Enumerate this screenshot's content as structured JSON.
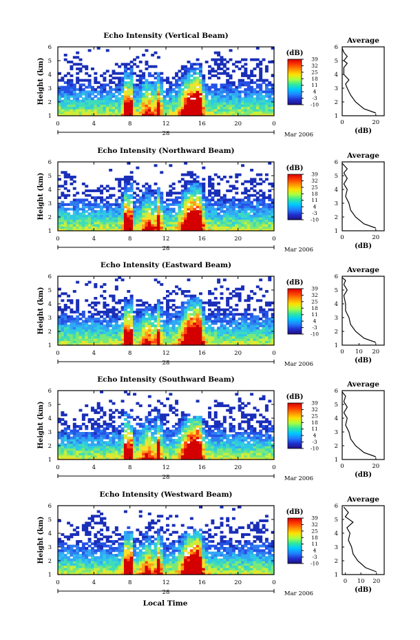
{
  "figure": {
    "x_label": "Local Time",
    "date_label": "Mar 2006",
    "day_label": "28",
    "x_ticks": [
      "0",
      "4",
      "8",
      "12",
      "16",
      "20",
      "0"
    ],
    "y_label": "Height (km)",
    "y_ticks": [
      "1",
      "2",
      "3",
      "4",
      "5",
      "6"
    ],
    "colorbar_title": "(dB)",
    "colorbar_ticks": [
      "39",
      "32",
      "25",
      "18",
      "11",
      "4",
      "-3",
      "-10"
    ],
    "colorbar_colors": [
      "#d40000",
      "#ff3a00",
      "#ff9000",
      "#ffe000",
      "#a8ff40",
      "#30e8a0",
      "#00c8ff",
      "#2080ff",
      "#2030d0",
      "#201080"
    ],
    "profile_title": "Average",
    "profile_xlabel": "(dB)"
  },
  "panels": [
    {
      "title": "Echo Intensity (Vertical Beam)",
      "profile_ticks": [
        "0",
        "20"
      ]
    },
    {
      "title": "Echo Intensity (Northward Beam)",
      "profile_ticks": [
        "0",
        "20"
      ]
    },
    {
      "title": "Echo Intensity (Eastward Beam)",
      "profile_ticks": [
        "0",
        "10",
        "20"
      ]
    },
    {
      "title": "Echo Intensity (Southward Beam)",
      "profile_ticks": [
        "0",
        "20"
      ]
    },
    {
      "title": "Echo Intensity (Westward Beam)",
      "profile_ticks": [
        "0",
        "10",
        "20"
      ]
    }
  ],
  "chart_data": [
    {
      "type": "heatmap",
      "title": "Echo Intensity (Vertical Beam)",
      "xlabel": "",
      "ylabel": "Height (km)",
      "xlim": [
        0,
        24
      ],
      "ylim": [
        1,
        6
      ],
      "colorbar": "(dB)",
      "zlim": [
        -10,
        39
      ],
      "profile": {
        "title": "Average",
        "xlabel": "(dB)",
        "xlim": [
          0,
          25
        ],
        "height": [
          1.2,
          1.5,
          2.0,
          2.5,
          3.0,
          3.3,
          3.6,
          4.0,
          4.5,
          4.8,
          5.0,
          5.3,
          5.6,
          5.9
        ],
        "value": [
          20,
          13,
          8,
          5,
          3,
          2,
          4,
          1,
          1,
          3,
          1,
          3,
          1,
          0
        ]
      }
    },
    {
      "type": "heatmap",
      "title": "Echo Intensity (Northward Beam)",
      "xlabel": "",
      "ylabel": "Height (km)",
      "xlim": [
        0,
        24
      ],
      "ylim": [
        1,
        6
      ],
      "colorbar": "(dB)",
      "zlim": [
        -10,
        39
      ],
      "profile": {
        "title": "Average",
        "xlabel": "(dB)",
        "xlim": [
          0,
          25
        ],
        "height": [
          1.2,
          1.5,
          2.0,
          2.5,
          3.0,
          3.5,
          4.0,
          4.4,
          4.8,
          5.2,
          5.5,
          5.9
        ],
        "value": [
          20,
          13,
          8,
          5,
          4,
          2,
          3,
          1,
          3,
          1,
          3,
          0
        ]
      }
    },
    {
      "type": "heatmap",
      "title": "Echo Intensity (Eastward Beam)",
      "xlabel": "",
      "ylabel": "Height (km)",
      "xlim": [
        0,
        24
      ],
      "ylim": [
        1,
        6
      ],
      "colorbar": "(dB)",
      "zlim": [
        -10,
        39
      ],
      "profile": {
        "title": "Average",
        "xlabel": "(dB)",
        "xlim": [
          0,
          25
        ],
        "height": [
          1.2,
          1.5,
          2.0,
          2.5,
          3.0,
          3.5,
          4.0,
          4.6,
          5.0,
          5.4,
          5.7,
          5.9
        ],
        "value": [
          20,
          13,
          8,
          5,
          4,
          2,
          2,
          1,
          3,
          1,
          2,
          0
        ]
      }
    },
    {
      "type": "heatmap",
      "title": "Echo Intensity (Southward Beam)",
      "xlabel": "",
      "ylabel": "Height (km)",
      "xlim": [
        0,
        24
      ],
      "ylim": [
        1,
        6
      ],
      "colorbar": "(dB)",
      "zlim": [
        -10,
        39
      ],
      "profile": {
        "title": "Average",
        "xlabel": "(dB)",
        "xlim": [
          0,
          25
        ],
        "height": [
          1.2,
          1.5,
          2.0,
          2.5,
          3.0,
          3.5,
          4.0,
          4.4,
          4.8,
          5.2,
          5.6,
          5.9
        ],
        "value": [
          20,
          13,
          8,
          5,
          4,
          2,
          3,
          1,
          3,
          1,
          2,
          0
        ]
      }
    },
    {
      "type": "heatmap",
      "title": "Echo Intensity (Westward Beam)",
      "xlabel": "",
      "ylabel": "Height (km)",
      "xlim": [
        0,
        24
      ],
      "ylim": [
        1,
        6
      ],
      "colorbar": "(dB)",
      "zlim": [
        -10,
        39
      ],
      "profile": {
        "title": "Average",
        "xlabel": "(dB)",
        "xlim": [
          -2,
          25
        ],
        "height": [
          1.2,
          1.5,
          2.0,
          2.5,
          3.0,
          3.5,
          4.0,
          4.4,
          4.8,
          5.2,
          5.5,
          5.9
        ],
        "value": [
          20,
          13,
          8,
          5,
          4,
          2,
          3,
          1,
          5,
          0,
          2,
          -1
        ]
      }
    }
  ]
}
